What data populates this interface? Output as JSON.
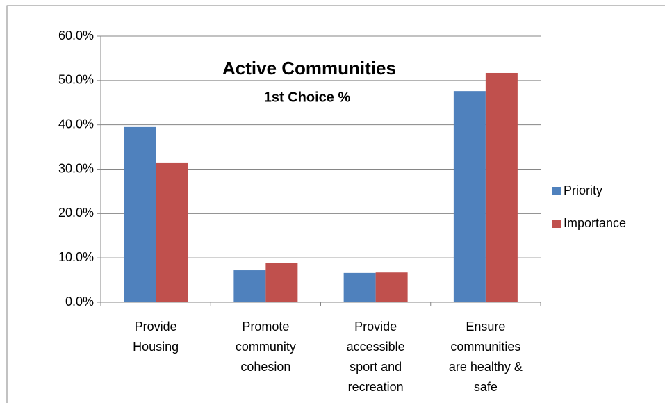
{
  "chart_data": {
    "type": "bar",
    "title": "Active Communities",
    "subtitle": "1st Choice %",
    "categories": [
      "Provide Housing",
      "Promote community cohesion",
      "Provide accessible sport and recreation",
      "Ensure communities are healthy & safe"
    ],
    "series": [
      {
        "name": "Priority",
        "color": "#4f81bd",
        "values": [
          39.5,
          7.2,
          6.6,
          47.6
        ]
      },
      {
        "name": "Importance",
        "color": "#c0504d",
        "values": [
          31.5,
          8.9,
          6.7,
          51.7
        ]
      }
    ],
    "ylim": [
      0,
      60
    ],
    "yticks": [
      {
        "value": 0,
        "label": "0.0%"
      },
      {
        "value": 10,
        "label": "10.0%"
      },
      {
        "value": 20,
        "label": "20.0%"
      },
      {
        "value": 30,
        "label": "30.0%"
      },
      {
        "value": 40,
        "label": "40.0%"
      },
      {
        "value": 50,
        "label": "50.0%"
      },
      {
        "value": 60,
        "label": "60.0%"
      }
    ],
    "grid": true,
    "legend": "right"
  }
}
